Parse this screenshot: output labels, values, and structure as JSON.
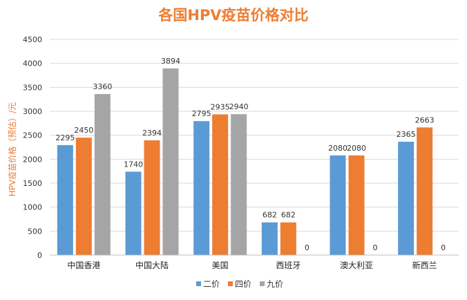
{
  "chart_data": {
    "type": "bar",
    "title": "各国HPV疫苗价格对比",
    "ylabel": "HPV疫苗价格（预估）/元",
    "xlabel": "",
    "categories": [
      "中国香港",
      "中国大陆",
      "美国",
      "西班牙",
      "澳大利亚",
      "新西兰"
    ],
    "series": [
      {
        "name": "二价",
        "values": [
          2295,
          1740,
          2795,
          682,
          2080,
          2365
        ]
      },
      {
        "name": "四价",
        "values": [
          2450,
          2394,
          2935,
          682,
          2080,
          2663
        ]
      },
      {
        "name": "九价",
        "values": [
          3360,
          3894,
          2940,
          0,
          0,
          0
        ]
      }
    ],
    "ylim": [
      0,
      4500
    ],
    "yticks": [
      0,
      500,
      1000,
      1500,
      2000,
      2500,
      3000,
      3500,
      4000,
      4500
    ],
    "grid": true,
    "legend": "bottom",
    "colors": {
      "series": [
        "#5b9bd5",
        "#ed7d31",
        "#a5a5a5"
      ],
      "title": "#ed7d31",
      "ylabel": "#ed7d31",
      "grid": "#d9d9d9"
    }
  }
}
